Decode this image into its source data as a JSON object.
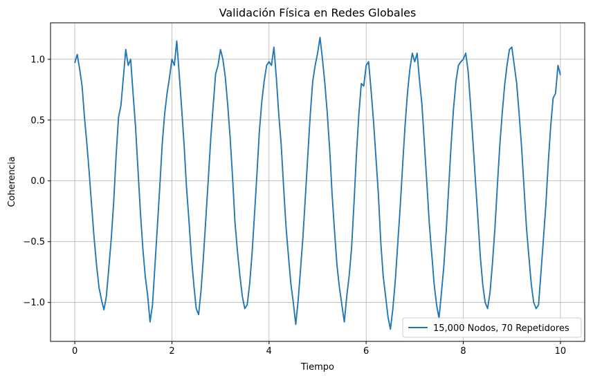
{
  "chart_data": {
    "type": "line",
    "title": "Validación Física en Redes Globales",
    "xlabel": "Tiempo",
    "ylabel": "Coherencia",
    "xlim": [
      -0.5,
      10.5
    ],
    "ylim": [
      -1.32,
      1.3
    ],
    "x_ticks": [
      0,
      2,
      4,
      6,
      8,
      10
    ],
    "x_tick_labels": [
      "0",
      "2",
      "4",
      "6",
      "8",
      "10"
    ],
    "y_ticks": [
      -1.0,
      -0.5,
      0.0,
      0.5,
      1.0
    ],
    "y_tick_labels": [
      "−1.0",
      "−0.5",
      "0.0",
      "0.5",
      "1.0"
    ],
    "grid": true,
    "legend_position": "lower-right",
    "series": [
      {
        "name": "15,000 Nodos, 70 Repetidores",
        "color": "#1f77b4",
        "x": [
          0.0,
          0.05,
          0.1,
          0.15,
          0.2,
          0.25,
          0.3,
          0.35,
          0.4,
          0.45,
          0.5,
          0.55,
          0.6,
          0.65,
          0.7,
          0.75,
          0.8,
          0.85,
          0.9,
          0.95,
          1.0,
          1.05,
          1.1,
          1.15,
          1.2,
          1.25,
          1.3,
          1.35,
          1.4,
          1.45,
          1.5,
          1.55,
          1.6,
          1.65,
          1.7,
          1.75,
          1.8,
          1.85,
          1.9,
          1.95,
          2.0,
          2.05,
          2.1,
          2.15,
          2.2,
          2.25,
          2.3,
          2.35,
          2.4,
          2.45,
          2.5,
          2.55,
          2.6,
          2.65,
          2.7,
          2.75,
          2.8,
          2.85,
          2.9,
          2.95,
          3.0,
          3.05,
          3.1,
          3.15,
          3.2,
          3.25,
          3.3,
          3.35,
          3.4,
          3.45,
          3.5,
          3.55,
          3.6,
          3.65,
          3.7,
          3.75,
          3.8,
          3.85,
          3.9,
          3.95,
          4.0,
          4.05,
          4.1,
          4.15,
          4.2,
          4.25,
          4.3,
          4.35,
          4.4,
          4.45,
          4.5,
          4.55,
          4.6,
          4.65,
          4.7,
          4.75,
          4.8,
          4.85,
          4.9,
          4.95,
          5.0,
          5.05,
          5.1,
          5.15,
          5.2,
          5.25,
          5.3,
          5.35,
          5.4,
          5.45,
          5.5,
          5.55,
          5.6,
          5.65,
          5.7,
          5.75,
          5.8,
          5.85,
          5.9,
          5.95,
          6.0,
          6.05,
          6.1,
          6.15,
          6.2,
          6.25,
          6.3,
          6.35,
          6.4,
          6.45,
          6.5,
          6.55,
          6.6,
          6.65,
          6.7,
          6.75,
          6.8,
          6.85,
          6.9,
          6.95,
          7.0,
          7.05,
          7.1,
          7.15,
          7.2,
          7.25,
          7.3,
          7.35,
          7.4,
          7.45,
          7.5,
          7.55,
          7.6,
          7.65,
          7.7,
          7.75,
          7.8,
          7.85,
          7.9,
          7.95,
          8.0,
          8.05,
          8.1,
          8.15,
          8.2,
          8.25,
          8.3,
          8.35,
          8.4,
          8.45,
          8.5,
          8.55,
          8.6,
          8.65,
          8.7,
          8.75,
          8.8,
          8.85,
          8.9,
          8.95,
          9.0,
          9.05,
          9.1,
          9.15,
          9.2,
          9.25,
          9.3,
          9.35,
          9.4,
          9.45,
          9.5,
          9.55,
          9.6,
          9.65,
          9.7,
          9.75,
          9.8,
          9.85,
          9.9,
          9.95,
          10.0
        ],
        "y": [
          0.97,
          1.04,
          0.92,
          0.78,
          0.52,
          0.3,
          0.05,
          -0.22,
          -0.48,
          -0.7,
          -0.88,
          -0.98,
          -1.06,
          -0.95,
          -0.72,
          -0.48,
          -0.18,
          0.2,
          0.52,
          0.62,
          0.85,
          1.08,
          0.95,
          1.0,
          0.72,
          0.45,
          0.1,
          -0.25,
          -0.55,
          -0.78,
          -0.94,
          -1.16,
          -1.02,
          -0.7,
          -0.38,
          -0.05,
          0.3,
          0.55,
          0.72,
          0.85,
          1.0,
          0.95,
          1.15,
          0.88,
          0.6,
          0.3,
          -0.05,
          -0.32,
          -0.62,
          -0.85,
          -1.05,
          -1.1,
          -0.9,
          -0.62,
          -0.3,
          0.02,
          0.35,
          0.62,
          0.88,
          0.95,
          1.08,
          1.0,
          0.85,
          0.62,
          0.35,
          0.02,
          -0.35,
          -0.58,
          -0.78,
          -0.95,
          -1.05,
          -1.02,
          -0.85,
          -0.6,
          -0.28,
          0.05,
          0.4,
          0.65,
          0.82,
          0.95,
          0.98,
          0.95,
          1.1,
          0.85,
          0.55,
          0.3,
          -0.05,
          -0.38,
          -0.62,
          -0.85,
          -1.0,
          -1.18,
          -0.98,
          -0.72,
          -0.45,
          -0.12,
          0.22,
          0.55,
          0.82,
          0.95,
          1.05,
          1.18,
          1.0,
          0.8,
          0.55,
          0.25,
          -0.12,
          -0.42,
          -0.7,
          -0.88,
          -1.02,
          -1.16,
          -0.95,
          -0.78,
          -0.55,
          -0.18,
          0.22,
          0.55,
          0.8,
          0.78,
          0.95,
          0.98,
          0.75,
          0.5,
          0.2,
          -0.1,
          -0.5,
          -0.78,
          -0.95,
          -1.12,
          -1.22,
          -1.05,
          -0.82,
          -0.52,
          -0.22,
          0.12,
          0.45,
          0.72,
          0.92,
          1.05,
          0.98,
          1.05,
          0.82,
          0.62,
          0.3,
          -0.02,
          -0.35,
          -0.6,
          -0.85,
          -1.02,
          -1.13,
          -0.92,
          -0.7,
          -0.4,
          -0.05,
          0.3,
          0.6,
          0.82,
          0.95,
          0.98,
          1.0,
          1.05,
          0.9,
          0.62,
          0.32,
          0.0,
          -0.3,
          -0.62,
          -0.85,
          -1.0,
          -1.05,
          -0.92,
          -0.68,
          -0.4,
          -0.05,
          0.28,
          0.55,
          0.78,
          0.95,
          1.08,
          1.1,
          0.95,
          0.8,
          0.55,
          0.28,
          -0.05,
          -0.38,
          -0.62,
          -0.85,
          -1.0,
          -1.05,
          -1.02,
          -0.75,
          -0.48,
          -0.2,
          0.15,
          0.45,
          0.68,
          0.72,
          0.95,
          0.87
        ]
      }
    ]
  }
}
